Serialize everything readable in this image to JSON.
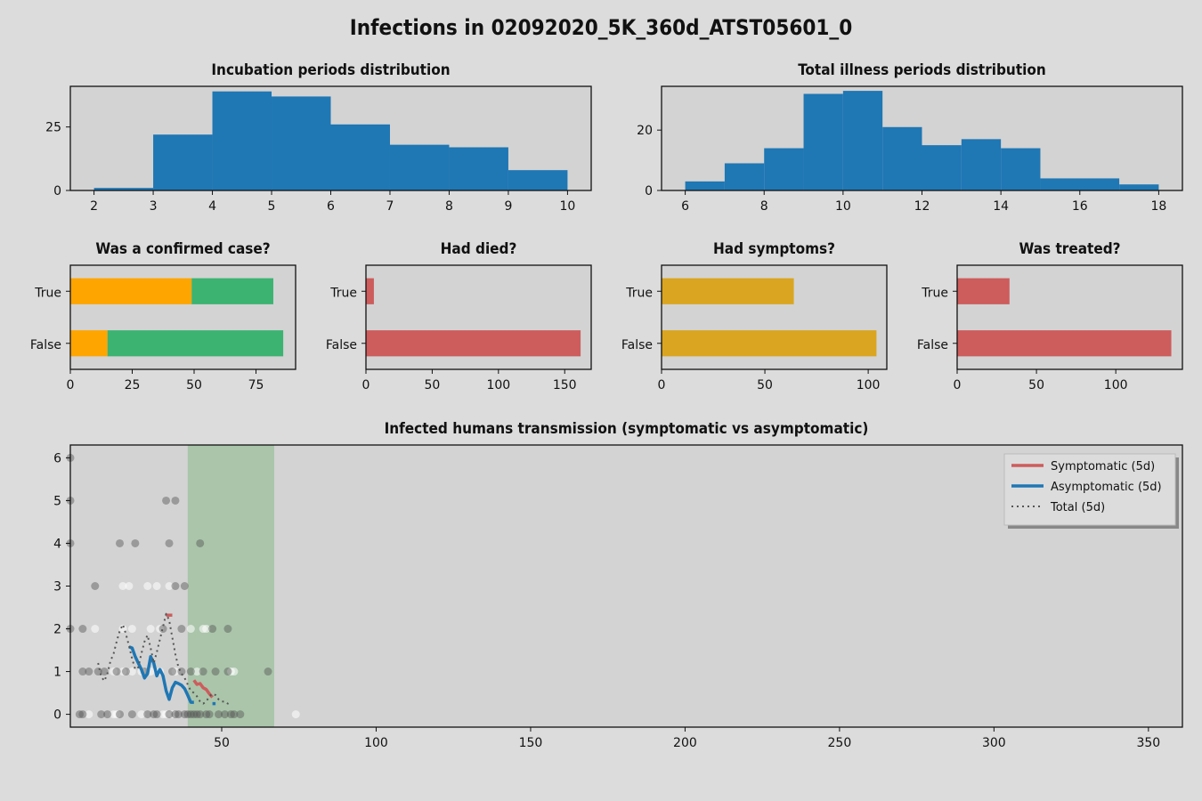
{
  "figure": {
    "title": "Infections in 02092020_5K_360d_ATST05601_0",
    "background": "#dcdcdc",
    "axes_background": "#d3d3d3"
  },
  "chart_data": [
    {
      "id": "incubation",
      "type": "bar",
      "title": "Incubation periods distribution",
      "color": "#1f77b4",
      "bins": [
        2,
        3,
        4,
        5,
        6,
        7,
        8,
        9,
        10
      ],
      "counts": [
        1,
        22,
        39,
        37,
        26,
        18,
        17,
        8
      ],
      "xlim": [
        1.6,
        10.4
      ],
      "ylim": [
        0,
        41
      ],
      "xticks": [
        2,
        3,
        4,
        5,
        6,
        7,
        8,
        9,
        10
      ],
      "yticks": [
        0,
        25
      ]
    },
    {
      "id": "illness",
      "type": "bar",
      "title": "Total illness periods distribution",
      "color": "#1f77b4",
      "bins": [
        6,
        7,
        8,
        9,
        10,
        11,
        12,
        13,
        14,
        15,
        17,
        18
      ],
      "counts": [
        3,
        9,
        14,
        32,
        33,
        21,
        15,
        17,
        14,
        4,
        2
      ],
      "xlim": [
        5.4,
        18.6
      ],
      "ylim": [
        0,
        34.5
      ],
      "xticks": [
        6,
        8,
        10,
        12,
        14,
        16,
        18
      ],
      "yticks": [
        0,
        20
      ]
    },
    {
      "id": "confirmed",
      "type": "bar",
      "orientation": "horizontal",
      "stacked": true,
      "title": "Was a confirmed case?",
      "categories": [
        "True",
        "False"
      ],
      "series": [
        {
          "values": [
            49,
            15
          ],
          "color": "#ffa500"
        },
        {
          "values": [
            33,
            71
          ],
          "color": "#3cb371"
        }
      ],
      "xlim": [
        0,
        91
      ],
      "xticks": [
        0,
        25,
        50,
        75
      ]
    },
    {
      "id": "died",
      "type": "bar",
      "orientation": "horizontal",
      "title": "Had died?",
      "categories": [
        "True",
        "False"
      ],
      "series": [
        {
          "values": [
            6,
            162
          ],
          "color": "#cd5c5c"
        }
      ],
      "xlim": [
        0,
        170
      ],
      "xticks": [
        0,
        50,
        100,
        150
      ]
    },
    {
      "id": "symptoms",
      "type": "bar",
      "orientation": "horizontal",
      "title": "Had symptoms?",
      "categories": [
        "True",
        "False"
      ],
      "series": [
        {
          "values": [
            64,
            104
          ],
          "color": "#daa520"
        }
      ],
      "xlim": [
        0,
        109
      ],
      "xticks": [
        0,
        50,
        100
      ]
    },
    {
      "id": "treated",
      "type": "bar",
      "orientation": "horizontal",
      "title": "Was treated?",
      "categories": [
        "True",
        "False"
      ],
      "series": [
        {
          "values": [
            33,
            135
          ],
          "color": "#cd5c5c"
        }
      ],
      "xlim": [
        0,
        142
      ],
      "xticks": [
        0,
        50,
        100
      ]
    },
    {
      "id": "transmission",
      "type": "scatter",
      "title": "Infected humans transmission (symptomatic vs asymptomatic)",
      "xlim": [
        1,
        361
      ],
      "ylim": [
        -0.3,
        6.3
      ],
      "xticks": [
        50,
        100,
        150,
        200,
        250,
        300,
        350
      ],
      "yticks": [
        0,
        1,
        2,
        3,
        4,
        5,
        6
      ],
      "shaded_span": {
        "x": [
          39,
          67
        ],
        "color": "#8fbc8f"
      },
      "points_asymptomatic": [
        [
          1,
          6
        ],
        [
          1,
          5
        ],
        [
          1,
          4
        ],
        [
          1,
          2
        ],
        [
          5,
          2
        ],
        [
          5,
          1
        ],
        [
          4,
          0
        ],
        [
          5,
          0
        ],
        [
          7,
          1
        ],
        [
          9,
          3
        ],
        [
          10,
          1
        ],
        [
          11,
          0
        ],
        [
          12,
          1
        ],
        [
          13,
          0
        ],
        [
          16,
          1
        ],
        [
          17,
          4
        ],
        [
          17,
          0
        ],
        [
          19,
          1
        ],
        [
          21,
          0
        ],
        [
          22,
          4
        ],
        [
          25,
          1
        ],
        [
          26,
          0
        ],
        [
          28,
          0
        ],
        [
          29,
          0
        ],
        [
          31,
          2
        ],
        [
          32,
          5
        ],
        [
          33,
          0
        ],
        [
          34,
          1
        ],
        [
          33,
          4
        ],
        [
          35,
          5
        ],
        [
          35,
          3
        ],
        [
          35,
          0
        ],
        [
          37,
          1
        ],
        [
          36,
          0
        ],
        [
          37,
          2
        ],
        [
          38,
          3
        ],
        [
          38,
          0
        ],
        [
          39,
          0
        ],
        [
          40,
          0
        ],
        [
          40,
          1
        ],
        [
          41,
          0
        ],
        [
          42,
          0
        ],
        [
          43,
          4
        ],
        [
          43,
          0
        ],
        [
          44,
          1
        ],
        [
          45,
          0
        ],
        [
          46,
          0
        ],
        [
          48,
          1
        ],
        [
          47,
          2
        ],
        [
          49,
          0
        ],
        [
          52,
          2
        ],
        [
          51,
          0
        ],
        [
          52,
          1
        ],
        [
          53,
          0
        ],
        [
          54,
          0
        ],
        [
          56,
          0
        ],
        [
          65,
          1
        ]
      ],
      "points_symptomatic": [
        [
          7,
          0
        ],
        [
          9,
          2
        ],
        [
          15,
          0
        ],
        [
          15,
          1
        ],
        [
          16,
          0
        ],
        [
          18,
          2
        ],
        [
          18,
          3
        ],
        [
          18,
          1
        ],
        [
          20,
          3
        ],
        [
          21,
          2
        ],
        [
          21,
          1
        ],
        [
          24,
          0
        ],
        [
          24,
          1
        ],
        [
          26,
          3
        ],
        [
          27,
          2
        ],
        [
          27,
          1
        ],
        [
          29,
          3
        ],
        [
          30,
          1
        ],
        [
          31,
          0
        ],
        [
          30,
          2
        ],
        [
          32,
          0
        ],
        [
          33,
          3
        ],
        [
          34,
          0
        ],
        [
          35,
          1
        ],
        [
          40,
          2
        ],
        [
          42,
          1
        ],
        [
          44,
          2
        ],
        [
          45,
          2
        ],
        [
          53,
          1
        ],
        [
          54,
          1
        ],
        [
          74,
          0
        ]
      ],
      "series": [
        {
          "name": "Symptomatic (5d)",
          "color": "#cd5c5c",
          "style": "solid",
          "segments": [
            [
              [
                32,
                2.32
              ],
              [
                34,
                2.32
              ]
            ],
            [
              [
                41,
                0.8
              ],
              [
                42,
                0.7
              ],
              [
                43,
                0.72
              ],
              [
                44,
                0.62
              ],
              [
                45,
                0.58
              ],
              [
                46,
                0.48
              ],
              [
                47,
                0.4
              ]
            ]
          ]
        },
        {
          "name": "Asymptomatic (5d)",
          "color": "#1f77b4",
          "style": "solid",
          "segments": [
            [
              [
                20,
                1.58
              ],
              [
                21,
                1.55
              ],
              [
                22,
                1.35
              ],
              [
                23,
                1.2
              ],
              [
                24,
                1.05
              ],
              [
                25,
                0.85
              ],
              [
                26,
                0.95
              ],
              [
                27,
                1.35
              ],
              [
                28,
                1.2
              ],
              [
                29,
                0.9
              ],
              [
                30,
                1.05
              ],
              [
                31,
                0.9
              ],
              [
                32,
                0.55
              ],
              [
                33,
                0.35
              ],
              [
                34,
                0.62
              ],
              [
                35,
                0.75
              ],
              [
                36,
                0.72
              ],
              [
                37,
                0.68
              ],
              [
                38,
                0.6
              ],
              [
                39,
                0.45
              ],
              [
                40,
                0.28
              ],
              [
                41,
                0.28
              ]
            ],
            [
              [
                47,
                0.25
              ],
              [
                48,
                0.25
              ]
            ]
          ]
        },
        {
          "name": "Total (5d)",
          "color": "#555555",
          "style": "dotted",
          "segments": [
            [
              [
                10,
                1.2
              ],
              [
                11,
                0.88
              ],
              [
                12,
                0.78
              ],
              [
                13,
                0.95
              ],
              [
                14,
                1.25
              ],
              [
                15,
                1.42
              ],
              [
                16,
                1.7
              ],
              [
                17,
                1.95
              ],
              [
                18,
                2.1
              ],
              [
                19,
                1.88
              ],
              [
                20,
                1.6
              ],
              [
                21,
                1.3
              ],
              [
                22,
                1.05
              ],
              [
                23,
                1.1
              ],
              [
                24,
                1.42
              ],
              [
                25,
                1.7
              ],
              [
                26,
                1.85
              ],
              [
                27,
                1.55
              ],
              [
                28,
                1.2
              ],
              [
                29,
                1.45
              ],
              [
                30,
                1.75
              ],
              [
                31,
                2.05
              ],
              [
                32,
                2.35
              ],
              [
                33,
                2.2
              ],
              [
                34,
                1.8
              ],
              [
                35,
                1.4
              ],
              [
                36,
                1.1
              ],
              [
                37,
                0.95
              ],
              [
                38,
                0.85
              ],
              [
                39,
                0.7
              ],
              [
                40,
                0.55
              ],
              [
                41,
                0.5
              ],
              [
                42,
                0.42
              ],
              [
                43,
                0.3
              ],
              [
                44,
                0.25
              ],
              [
                45,
                0.3
              ],
              [
                46,
                0.42
              ],
              [
                47,
                0.48
              ],
              [
                48,
                0.45
              ],
              [
                49,
                0.35
              ],
              [
                50,
                0.3
              ],
              [
                51,
                0.3
              ],
              [
                52,
                0.25
              ],
              [
                53,
                0.3
              ]
            ]
          ]
        }
      ],
      "legend": {
        "placement": "top-right"
      }
    }
  ]
}
